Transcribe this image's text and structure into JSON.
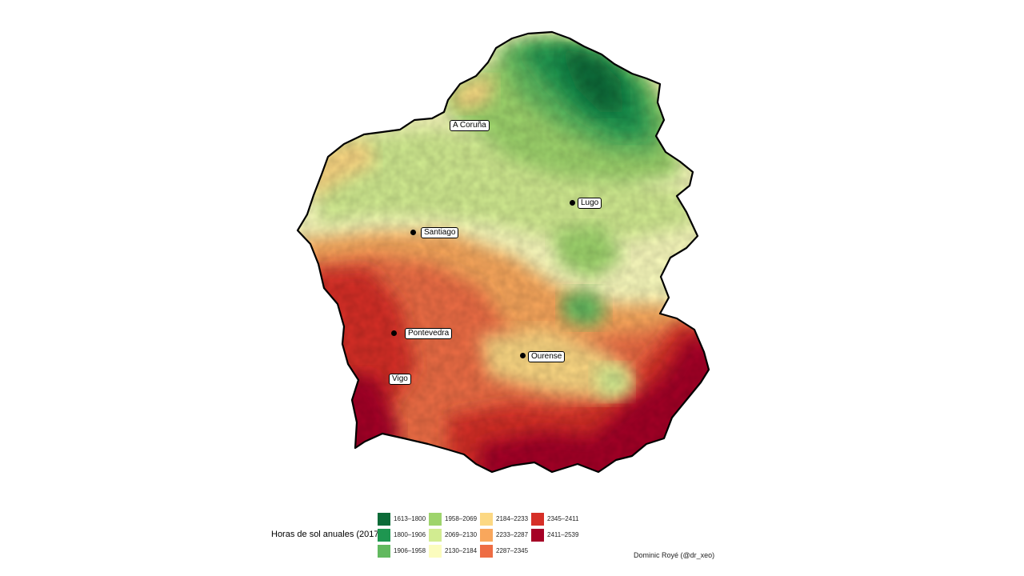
{
  "map": {
    "variable": "Horas de sol anuales",
    "year": 2017
  },
  "cities": [
    {
      "name": "A Coruña",
      "has_dot": false
    },
    {
      "name": "Lugo",
      "has_dot": true
    },
    {
      "name": "Santiago",
      "has_dot": true
    },
    {
      "name": "Pontevedra",
      "has_dot": true
    },
    {
      "name": "Ourense",
      "has_dot": true
    },
    {
      "name": "Vigo",
      "has_dot": true
    }
  ],
  "legend": {
    "title": "Horas de sol anuales (2017)",
    "classes": [
      {
        "label": "1613–1800",
        "color": "#0c6b38"
      },
      {
        "label": "1800–1906",
        "color": "#1e9650"
      },
      {
        "label": "1906–1958",
        "color": "#62b95f"
      },
      {
        "label": "1958–2069",
        "color": "#9ed46c"
      },
      {
        "label": "2069–2130",
        "color": "#d2ec91"
      },
      {
        "label": "2130–2184",
        "color": "#fbfcbe"
      },
      {
        "label": "2184–2233",
        "color": "#fcd883"
      },
      {
        "label": "2233–2287",
        "color": "#f9a75c"
      },
      {
        "label": "2287–2345",
        "color": "#ee6d44"
      },
      {
        "label": "2345–2411",
        "color": "#d62f27"
      },
      {
        "label": "2411–2539",
        "color": "#a50026"
      }
    ]
  },
  "credit": "Dominic Royé (@dr_xeo)"
}
